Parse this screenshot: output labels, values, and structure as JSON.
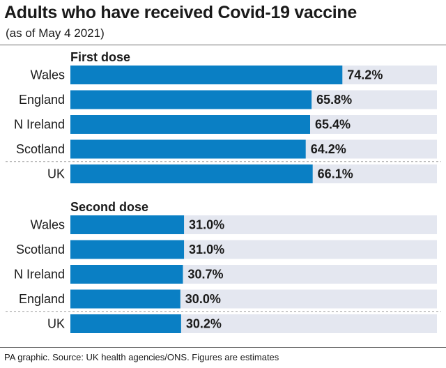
{
  "header": {
    "title": "Adults who have received Covid-19 vaccine",
    "subtitle": "(as of May 4 2021)"
  },
  "footer": {
    "source": "PA graphic. Source: UK health agencies/ONS. Figures are estimates"
  },
  "colors": {
    "bar": "#0a7fc4",
    "track": "#e4e7f0",
    "divider": "#9a9a9a"
  },
  "chart_data": [
    {
      "type": "bar",
      "orientation": "horizontal",
      "title": "First dose",
      "categories": [
        "Wales",
        "England",
        "N Ireland",
        "Scotland",
        "UK"
      ],
      "values": [
        74.2,
        65.8,
        65.4,
        64.2,
        66.1
      ],
      "value_labels": [
        "74.2%",
        "65.8%",
        "65.4%",
        "64.2%",
        "66.1%"
      ],
      "xlim": [
        0,
        100
      ],
      "unit": "%"
    },
    {
      "type": "bar",
      "orientation": "horizontal",
      "title": "Second dose",
      "categories": [
        "Wales",
        "Scotland",
        "N Ireland",
        "England",
        "UK"
      ],
      "values": [
        31.0,
        31.0,
        30.7,
        30.0,
        30.2
      ],
      "value_labels": [
        "31.0%",
        "31.0%",
        "30.7%",
        "30.0%",
        "30.2%"
      ],
      "xlim": [
        0,
        100
      ],
      "unit": "%"
    }
  ]
}
